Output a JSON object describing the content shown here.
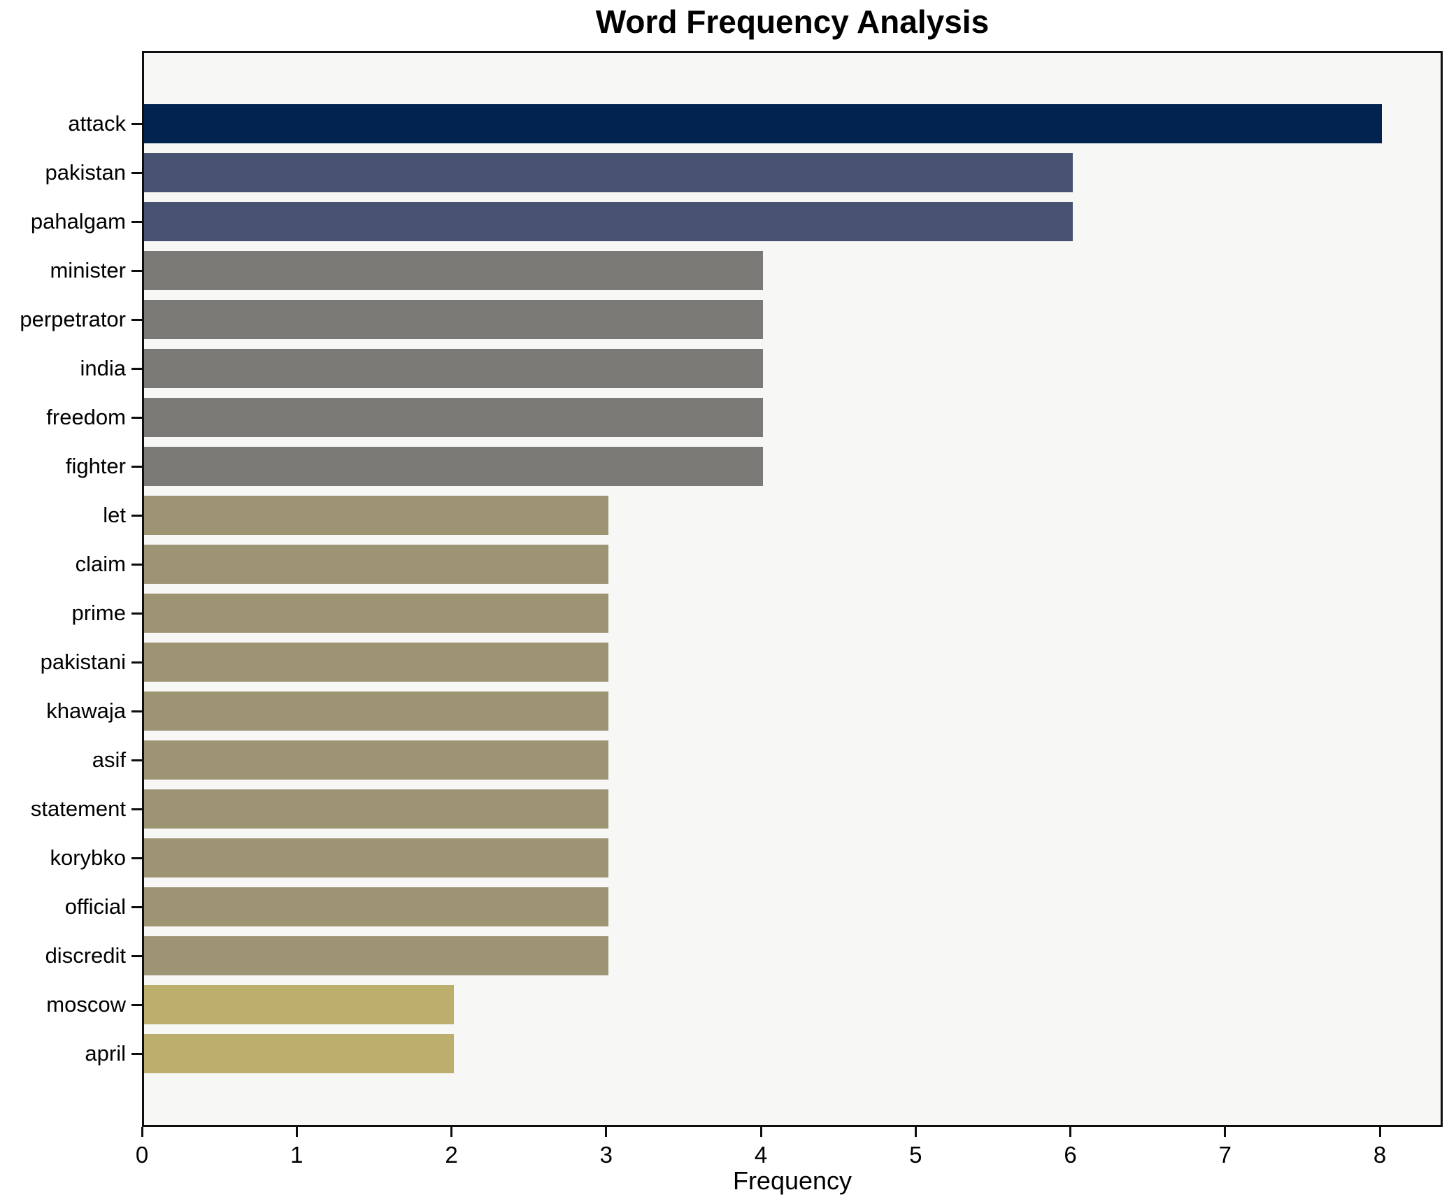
{
  "title": "Word Frequency Analysis",
  "chart_data": {
    "type": "bar",
    "orientation": "horizontal",
    "title": "Word Frequency Analysis",
    "xlabel": "Frequency",
    "ylabel": "",
    "categories": [
      "attack",
      "pakistan",
      "pahalgam",
      "minister",
      "perpetrator",
      "india",
      "freedom",
      "fighter",
      "let",
      "claim",
      "prime",
      "pakistani",
      "khawaja",
      "asif",
      "statement",
      "korybko",
      "official",
      "discredit",
      "moscow",
      "april"
    ],
    "values": [
      8,
      6,
      6,
      4,
      4,
      4,
      4,
      4,
      3,
      3,
      3,
      3,
      3,
      3,
      3,
      3,
      3,
      3,
      2,
      2
    ],
    "bar_colors": [
      "#02234e",
      "#475371",
      "#475371",
      "#7b7a76",
      "#7b7a76",
      "#7b7a76",
      "#7b7a76",
      "#7b7a76",
      "#9c9473",
      "#9c9473",
      "#9c9473",
      "#9c9473",
      "#9c9473",
      "#9c9473",
      "#9c9473",
      "#9c9473",
      "#9c9473",
      "#9c9473",
      "#bcae6c",
      "#bcae6c"
    ],
    "xticks": [
      0,
      1,
      2,
      3,
      4,
      5,
      6,
      7,
      8
    ],
    "xlim": [
      0,
      8.41
    ],
    "grid": false,
    "legend": false,
    "plot_background": "#f7f7f5",
    "frame_color": "#0e0e0e"
  }
}
